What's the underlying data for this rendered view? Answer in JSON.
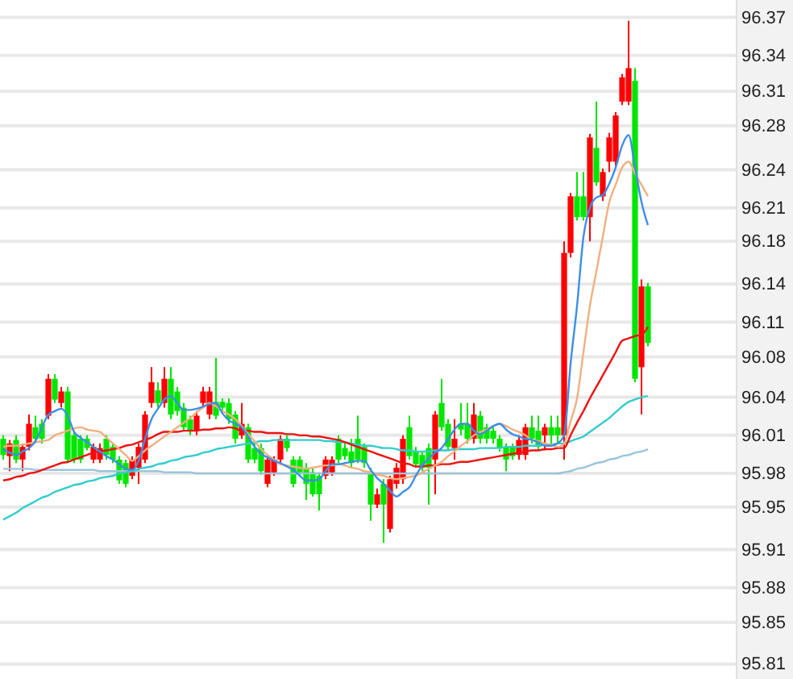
{
  "chart_data": {
    "type": "candlestick",
    "categories": [
      null,
      null,
      null,
      null,
      null,
      null,
      null,
      null,
      null,
      null,
      null,
      null,
      null,
      null,
      null,
      null,
      null,
      null,
      null,
      null,
      null,
      null,
      null,
      null,
      null,
      null,
      null,
      null,
      null,
      null,
      null,
      null,
      null,
      null,
      null,
      null,
      null,
      null,
      null,
      null,
      null,
      null,
      null,
      null,
      null,
      null,
      null,
      null,
      null,
      null,
      null,
      null,
      null,
      null,
      null,
      null,
      null,
      null,
      null,
      null,
      null,
      null,
      null,
      null,
      null,
      null,
      null,
      null,
      null,
      null,
      null,
      null,
      null,
      null,
      null,
      null,
      null,
      null,
      null,
      null,
      null,
      null,
      null,
      null,
      null,
      null,
      null,
      null,
      null,
      null,
      null,
      null,
      null,
      null,
      null,
      null,
      null,
      null,
      null,
      null,
      null
    ],
    "ohlc": [
      [
        96.005,
        96.008,
        95.987,
        95.991
      ],
      [
        95.99,
        96.004,
        95.977,
        96.001
      ],
      [
        96.004,
        96.008,
        95.984,
        95.987
      ],
      [
        95.987,
        96.001,
        95.977,
        95.998
      ],
      [
        95.998,
        96.026,
        95.995,
        96.018
      ],
      [
        96.015,
        96.025,
        96.001,
        96.005
      ],
      [
        96.018,
        96.022,
        96.001,
        96.005
      ],
      [
        96.025,
        96.061,
        96.022,
        96.057
      ],
      [
        96.057,
        96.061,
        96.036,
        96.039
      ],
      [
        96.036,
        96.05,
        96.032,
        96.046
      ],
      [
        96.046,
        96.05,
        95.984,
        95.987
      ],
      [
        96.008,
        96.012,
        95.984,
        95.987
      ],
      [
        96.005,
        96.008,
        95.984,
        95.987
      ],
      [
        96.005,
        96.008,
        95.995,
        95.997
      ],
      [
        95.987,
        96.001,
        95.984,
        95.998
      ],
      [
        95.987,
        96.001,
        95.984,
        95.997
      ],
      [
        96.005,
        96.008,
        95.987,
        95.991
      ],
      [
        95.998,
        96.001,
        95.984,
        95.987
      ],
      [
        95.987,
        95.99,
        95.966,
        95.969
      ],
      [
        95.984,
        95.987,
        95.963,
        95.966
      ],
      [
        95.973,
        95.99,
        95.97,
        95.987
      ],
      [
        95.98,
        96.001,
        95.966,
        95.998
      ],
      [
        95.987,
        96.029,
        95.984,
        96.026
      ],
      [
        96.036,
        96.067,
        96.032,
        96.054
      ],
      [
        96.047,
        96.054,
        96.032,
        96.036
      ],
      [
        96.036,
        96.067,
        96.032,
        96.057
      ],
      [
        96.057,
        96.067,
        96.022,
        96.026
      ],
      [
        96.046,
        96.05,
        96.025,
        96.029
      ],
      [
        96.032,
        96.036,
        96.012,
        96.015
      ],
      [
        96.022,
        96.025,
        96.008,
        96.012
      ],
      [
        96.012,
        96.029,
        96.008,
        96.025
      ],
      [
        96.036,
        96.05,
        96.032,
        96.046
      ],
      [
        96.026,
        96.05,
        96.022,
        96.046
      ],
      [
        96.037,
        96.075,
        96.022,
        96.025
      ],
      [
        96.037,
        96.04,
        96.029,
        96.032
      ],
      [
        96.036,
        96.04,
        96.018,
        96.022
      ],
      [
        96.026,
        96.029,
        96.001,
        96.005
      ],
      [
        96.008,
        96.036,
        96.005,
        96.018
      ],
      [
        96.015,
        96.018,
        95.984,
        95.987
      ],
      [
        95.997,
        96.001,
        95.984,
        95.987
      ],
      [
        95.997,
        96.001,
        95.974,
        95.977
      ],
      [
        95.966,
        95.99,
        95.963,
        95.987
      ],
      [
        95.976,
        95.99,
        95.973,
        95.987
      ],
      [
        95.987,
        96.008,
        95.984,
        96.005
      ],
      [
        96.005,
        96.008,
        95.994,
        95.997
      ],
      [
        95.987,
        95.99,
        95.963,
        95.966
      ],
      [
        95.987,
        95.99,
        95.973,
        95.976
      ],
      [
        95.98,
        95.984,
        95.952,
        95.966
      ],
      [
        95.976,
        95.98,
        95.955,
        95.957
      ],
      [
        95.973,
        95.976,
        95.943,
        95.957
      ],
      [
        95.973,
        95.99,
        95.97,
        95.987
      ],
      [
        95.976,
        95.99,
        95.973,
        95.987
      ],
      [
        96.005,
        96.008,
        95.984,
        95.987
      ],
      [
        95.997,
        96.001,
        95.987,
        95.99
      ],
      [
        95.994,
        96.005,
        95.98,
        95.984
      ],
      [
        96.005,
        96.025,
        95.984,
        95.987
      ],
      [
        95.998,
        96.001,
        95.98,
        95.984
      ],
      [
        95.976,
        95.98,
        95.934,
        95.948
      ],
      [
        95.948,
        95.962,
        95.945,
        95.957
      ],
      [
        95.966,
        95.97,
        95.915,
        95.948
      ],
      [
        95.927,
        95.973,
        95.924,
        95.97
      ],
      [
        95.966,
        95.984,
        95.962,
        95.98
      ],
      [
        95.97,
        96.008,
        95.966,
        96.005
      ],
      [
        96.015,
        96.025,
        95.987,
        95.99
      ],
      [
        95.994,
        95.998,
        95.98,
        95.983
      ],
      [
        95.991,
        95.994,
        95.977,
        95.98
      ],
      [
        95.997,
        96.001,
        95.948,
        95.98
      ],
      [
        95.987,
        96.029,
        95.957,
        96.026
      ],
      [
        96.036,
        96.057,
        96.012,
        96.015
      ],
      [
        96.018,
        96.022,
        95.995,
        95.998
      ],
      [
        95.997,
        96.022,
        95.987,
        96.005
      ],
      [
        96.018,
        96.036,
        96.008,
        96.013
      ],
      [
        96.018,
        96.036,
        96.001,
        96.005
      ],
      [
        96.005,
        96.036,
        96.001,
        96.026
      ],
      [
        96.025,
        96.029,
        96.001,
        96.005
      ],
      [
        96.015,
        96.018,
        96.001,
        96.005
      ],
      [
        96.012,
        96.015,
        96.001,
        96.005
      ],
      [
        96.005,
        96.008,
        95.994,
        95.997
      ],
      [
        95.998,
        96.001,
        95.977,
        95.987
      ],
      [
        95.998,
        96.001,
        95.987,
        95.99
      ],
      [
        95.991,
        96.008,
        95.987,
        96.004
      ],
      [
        95.991,
        96.018,
        95.987,
        96.015
      ],
      [
        96.015,
        96.025,
        96.001,
        96.005
      ],
      [
        96.012,
        96.025,
        95.995,
        95.998
      ],
      [
        96.008,
        96.018,
        95.995,
        96.015
      ],
      [
        96.015,
        96.025,
        96.001,
        96.008
      ],
      [
        96.015,
        96.025,
        96.001,
        96.008
      ],
      [
        96.008,
        96.176,
        95.987,
        96.166
      ],
      [
        96.166,
        96.218,
        96.162,
        96.215
      ],
      [
        96.215,
        96.236,
        96.194,
        96.197
      ],
      [
        96.215,
        96.236,
        96.194,
        96.197
      ],
      [
        96.197,
        96.269,
        96.176,
        96.266
      ],
      [
        96.257,
        96.297,
        96.224,
        96.227
      ],
      [
        96.215,
        96.239,
        96.211,
        96.236
      ],
      [
        96.245,
        96.27,
        96.236,
        96.266
      ],
      [
        96.245,
        96.288,
        96.241,
        96.285
      ],
      [
        96.297,
        96.321,
        96.294,
        96.318
      ],
      [
        96.297,
        96.367,
        96.294,
        96.326
      ],
      [
        96.315,
        96.326,
        96.054,
        96.057
      ],
      [
        96.067,
        96.143,
        96.026,
        96.137
      ],
      [
        96.137,
        96.14,
        96.085,
        96.088
      ]
    ],
    "colors": [
      "#00e600",
      "#ff0000",
      "#00e600",
      "#ff0000",
      "#ff0000",
      "#00e600",
      "#00e600",
      "#ff0000",
      "#00e600",
      "#ff0000",
      "#00e600",
      "#00e600",
      "#00e600",
      "#00e600",
      "#ff0000",
      "#ff0000",
      "#00e600",
      "#00e600",
      "#00e600",
      "#00e600",
      "#ff0000",
      "#ff0000",
      "#ff0000",
      "#ff0000",
      "#00e600",
      "#ff0000",
      "#00e600",
      "#00e600",
      "#00e600",
      "#00e600",
      "#ff0000",
      "#ff0000",
      "#ff0000",
      "#00e600",
      "#00e600",
      "#00e600",
      "#00e600",
      "#ff0000",
      "#00e600",
      "#00e600",
      "#00e600",
      "#ff0000",
      "#ff0000",
      "#ff0000",
      "#00e600",
      "#00e600",
      "#00e600",
      "#00e600",
      "#00e600",
      "#00e600",
      "#ff0000",
      "#ff0000",
      "#00e600",
      "#00e600",
      "#00e600",
      "#00e600",
      "#00e600",
      "#00e600",
      "#ff0000",
      "#00e600",
      "#ff0000",
      "#ff0000",
      "#ff0000",
      "#00e600",
      "#00e600",
      "#00e600",
      "#00e600",
      "#ff0000",
      "#00e600",
      "#00e600",
      "#ff0000",
      "#00e600",
      "#00e600",
      "#ff0000",
      "#00e600",
      "#00e600",
      "#00e600",
      "#00e600",
      "#00e600",
      "#00e600",
      "#ff0000",
      "#ff0000",
      "#00e600",
      "#00e600",
      "#ff0000",
      "#00e600",
      "#00e600",
      "#ff0000",
      "#ff0000",
      "#00e600",
      "#00e600",
      "#ff0000",
      "#00e600",
      "#ff0000",
      "#ff0000",
      "#ff0000",
      "#ff0000",
      "#ff0000",
      "#00e600",
      "#ff0000",
      "#00e600"
    ],
    "series": [
      {
        "type": "line",
        "color": "#9cc4dc",
        "values": [
          95.979,
          95.979,
          95.979,
          95.979,
          95.979,
          95.978,
          95.978,
          95.978,
          95.978,
          95.978,
          95.978,
          95.978,
          95.978,
          95.978,
          95.978,
          95.977,
          95.977,
          95.977,
          95.977,
          95.977,
          95.977,
          95.977,
          95.977,
          95.977,
          95.977,
          95.976,
          95.976,
          95.976,
          95.976,
          95.976,
          95.975,
          95.975,
          95.975,
          95.975,
          95.975,
          95.975,
          95.975,
          95.975,
          95.975,
          95.975,
          95.975,
          95.975,
          95.975,
          95.975,
          95.975,
          95.975,
          95.975,
          95.975,
          95.975,
          95.975,
          95.975,
          95.975,
          95.975,
          95.975,
          95.975,
          95.975,
          95.975,
          95.975,
          95.975,
          95.975,
          95.975,
          95.975,
          95.975,
          95.975,
          95.975,
          95.975,
          95.975,
          95.975,
          95.975,
          95.975,
          95.975,
          95.975,
          95.975,
          95.975,
          95.975,
          95.975,
          95.975,
          95.975,
          95.975,
          95.975,
          95.975,
          95.975,
          95.975,
          95.975,
          95.975,
          95.975,
          95.975,
          95.976,
          95.977,
          95.979,
          95.98,
          95.982,
          95.984,
          95.985,
          95.987,
          95.988,
          95.99,
          95.991,
          95.993,
          95.994,
          95.996
        ]
      },
      {
        "type": "line",
        "color": "#33cccc",
        "values": [
          95.935,
          95.938,
          95.941,
          95.945,
          95.948,
          95.951,
          95.954,
          95.956,
          95.959,
          95.961,
          95.963,
          95.965,
          95.966,
          95.968,
          95.969,
          95.971,
          95.972,
          95.973,
          95.975,
          95.976,
          95.977,
          95.979,
          95.98,
          95.981,
          95.983,
          95.984,
          95.986,
          95.987,
          95.989,
          95.99,
          95.991,
          95.993,
          95.994,
          95.996,
          95.997,
          95.998,
          95.999,
          96.0,
          96.001,
          96.002,
          96.003,
          96.003,
          96.004,
          96.004,
          96.004,
          96.004,
          96.004,
          96.004,
          96.004,
          96.004,
          96.003,
          96.003,
          96.002,
          96.002,
          96.001,
          96.0,
          95.999,
          95.999,
          95.998,
          95.997,
          95.997,
          95.996,
          95.995,
          95.995,
          95.994,
          95.994,
          95.994,
          95.995,
          95.995,
          95.995,
          95.996,
          95.996,
          95.996,
          95.996,
          95.997,
          95.997,
          95.997,
          95.997,
          95.998,
          95.998,
          95.998,
          95.999,
          95.999,
          95.999,
          96.0,
          96.0,
          96.001,
          96.001,
          96.003,
          96.005,
          96.007,
          96.011,
          96.015,
          96.019,
          96.023,
          96.028,
          96.033,
          96.037,
          96.039,
          96.041,
          96.042
        ]
      },
      {
        "type": "line",
        "color": "#ee1111",
        "values": [
          95.969,
          95.97,
          95.972,
          95.973,
          95.975,
          95.976,
          95.978,
          95.98,
          95.982,
          95.984,
          95.985,
          95.987,
          95.989,
          95.991,
          95.993,
          95.994,
          95.995,
          95.996,
          95.997,
          95.999,
          96.0,
          96.002,
          96.004,
          96.006,
          96.009,
          96.011,
          96.011,
          96.011,
          96.012,
          96.012,
          96.012,
          96.013,
          96.013,
          96.014,
          96.014,
          96.015,
          96.014,
          96.012,
          96.012,
          96.011,
          96.011,
          96.01,
          96.01,
          96.01,
          96.009,
          96.009,
          96.008,
          96.008,
          96.007,
          96.007,
          96.006,
          96.005,
          96.004,
          96.002,
          96.0,
          95.998,
          95.996,
          95.994,
          95.992,
          95.99,
          95.988,
          95.986,
          95.984,
          95.983,
          95.981,
          95.981,
          95.982,
          95.982,
          95.983,
          95.983,
          95.984,
          95.985,
          95.985,
          95.986,
          95.987,
          95.988,
          95.989,
          95.99,
          95.991,
          95.992,
          95.993,
          95.994,
          95.995,
          95.995,
          95.996,
          95.996,
          95.997,
          95.997,
          96.008,
          96.019,
          96.029,
          96.04,
          96.05,
          96.06,
          96.07,
          96.08,
          96.09,
          96.092,
          96.094,
          96.095,
          96.102
        ]
      },
      {
        "type": "line",
        "color": "#f0b080",
        "values": [
          95.998,
          95.999,
          95.999,
          96.0,
          96.001,
          96.002,
          96.003,
          96.004,
          96.008,
          96.01,
          96.012,
          96.014,
          96.015,
          96.013,
          96.012,
          96.011,
          96.006,
          96.001,
          95.996,
          95.991,
          95.986,
          95.99,
          95.995,
          95.999,
          96.003,
          96.007,
          96.011,
          96.015,
          96.019,
          96.023,
          96.028,
          96.032,
          96.036,
          96.033,
          96.029,
          96.026,
          96.022,
          96.016,
          96.009,
          96.003,
          95.996,
          95.991,
          95.987,
          95.983,
          95.982,
          95.981,
          95.98,
          95.979,
          95.98,
          95.981,
          95.982,
          95.982,
          95.983,
          95.982,
          95.98,
          95.979,
          95.977,
          95.976,
          95.974,
          95.973,
          95.971,
          95.97,
          95.971,
          95.972,
          95.973,
          95.976,
          95.979,
          95.982,
          95.985,
          95.99,
          95.994,
          95.999,
          96.003,
          96.008,
          96.011,
          96.013,
          96.016,
          96.018,
          96.016,
          96.013,
          96.011,
          96.008,
          96.004,
          96.003,
          96.001,
          96.0,
          95.998,
          96.001,
          96.02,
          96.04,
          96.08,
          96.12,
          96.15,
          96.18,
          96.21,
          96.225,
          96.24,
          96.245,
          96.235,
          96.225,
          96.215
        ]
      },
      {
        "type": "line",
        "color": "#3d8ee8",
        "values": [
          95.996,
          95.993,
          95.991,
          95.994,
          95.997,
          96.003,
          96.015,
          96.026,
          96.029,
          96.031,
          96.025,
          96.011,
          96.006,
          96.002,
          95.998,
          95.994,
          95.99,
          95.987,
          95.983,
          95.979,
          95.978,
          95.986,
          96.005,
          96.022,
          96.031,
          96.039,
          96.042,
          96.036,
          96.03,
          96.03,
          96.031,
          96.033,
          96.035,
          96.036,
          96.027,
          96.021,
          96.018,
          96.015,
          96.007,
          95.998,
          95.992,
          95.989,
          95.986,
          95.984,
          95.981,
          95.978,
          95.973,
          95.969,
          95.969,
          95.97,
          95.977,
          95.983,
          95.983,
          95.984,
          95.985,
          95.986,
          95.986,
          95.978,
          95.971,
          95.966,
          95.96,
          95.955,
          95.959,
          95.963,
          95.973,
          95.982,
          95.988,
          95.993,
          95.997,
          96.005,
          96.013,
          96.018,
          96.018,
          96.012,
          96.009,
          96.012,
          96.016,
          96.018,
          96.013,
          96.009,
          96.007,
          96.005,
          96.004,
          96.002,
          95.999,
          95.999,
          96.001,
          96.008,
          96.07,
          96.12,
          96.18,
          96.205,
          96.214,
          96.216,
          96.226,
          96.24,
          96.259,
          96.268,
          96.24,
          96.21,
          96.19
        ]
      }
    ],
    "ylim": [
      95.797,
      96.385
    ],
    "yticks": [
      {
        "value": 96.37,
        "label": "96.37"
      },
      {
        "value": 96.337,
        "label": "96.34"
      },
      {
        "value": 96.306,
        "label": "96.31"
      },
      {
        "value": 96.276,
        "label": "96.28"
      },
      {
        "value": 96.238,
        "label": "96.24"
      },
      {
        "value": 96.205,
        "label": "96.21"
      },
      {
        "value": 96.176,
        "label": "96.18"
      },
      {
        "value": 96.139,
        "label": "96.14"
      },
      {
        "value": 96.106,
        "label": "96.11"
      },
      {
        "value": 96.076,
        "label": "96.08"
      },
      {
        "value": 96.041,
        "label": "96.04"
      },
      {
        "value": 96.008,
        "label": "96.01"
      },
      {
        "value": 95.975,
        "label": "95.98"
      },
      {
        "value": 95.946,
        "label": "95.95"
      },
      {
        "value": 95.909,
        "label": "95.91"
      },
      {
        "value": 95.876,
        "label": "95.88"
      },
      {
        "value": 95.846,
        "label": "95.85"
      },
      {
        "value": 95.81,
        "label": "95.81"
      }
    ],
    "grid": "y",
    "tick_labels": "y"
  }
}
